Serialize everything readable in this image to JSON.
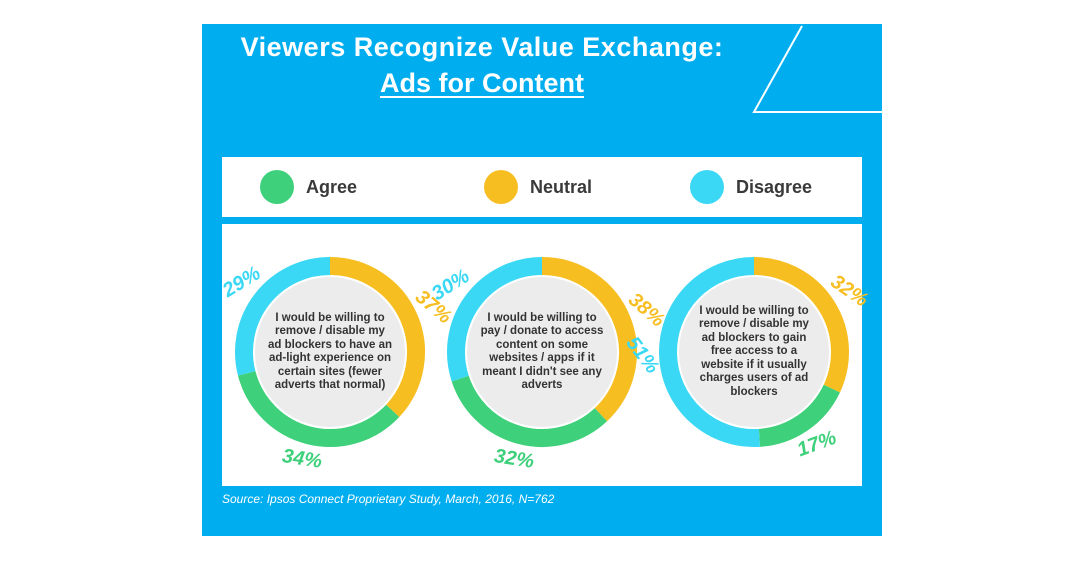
{
  "title": {
    "line1": "Viewers Recognize Value Exchange:",
    "line2": "Ads for Content"
  },
  "colors": {
    "frame": "#00adef",
    "agree": "#3ed07a",
    "neutral": "#f7be22",
    "disagree": "#3ad8f4",
    "center": "#ececec"
  },
  "legend": [
    {
      "key": "agree",
      "label": "Agree"
    },
    {
      "key": "neutral",
      "label": "Neutral"
    },
    {
      "key": "disagree",
      "label": "Disagree"
    }
  ],
  "chart_data": [
    {
      "type": "pie",
      "title": "",
      "center_text": "I would be willing to remove / disable my ad blockers to have an ad-light experience on certain sites (fewer adverts that normal)",
      "slices": [
        {
          "label": "Neutral",
          "value": 37,
          "display": "37%"
        },
        {
          "label": "Agree",
          "value": 34,
          "display": "34%"
        },
        {
          "label": "Disagree",
          "value": 29,
          "display": "29%"
        }
      ]
    },
    {
      "type": "pie",
      "title": "",
      "center_text": "I would be willing to pay / donate to access content on some websites / apps if it meant I didn't see any adverts",
      "slices": [
        {
          "label": "Neutral",
          "value": 38,
          "display": "38%"
        },
        {
          "label": "Agree",
          "value": 32,
          "display": "32%"
        },
        {
          "label": "Disagree",
          "value": 30,
          "display": "30%"
        }
      ]
    },
    {
      "type": "pie",
      "title": "",
      "center_text": "I would be willing to remove / disable my ad blockers to gain free access to a website if it usually charges users of ad blockers",
      "slices": [
        {
          "label": "Neutral",
          "value": 32,
          "display": "32%"
        },
        {
          "label": "Agree",
          "value": 17,
          "display": "17%"
        },
        {
          "label": "Disagree",
          "value": 51,
          "display": "51%"
        }
      ]
    }
  ],
  "source": "Source: Ipsos Connect Proprietary Study, March, 2016, N=762"
}
